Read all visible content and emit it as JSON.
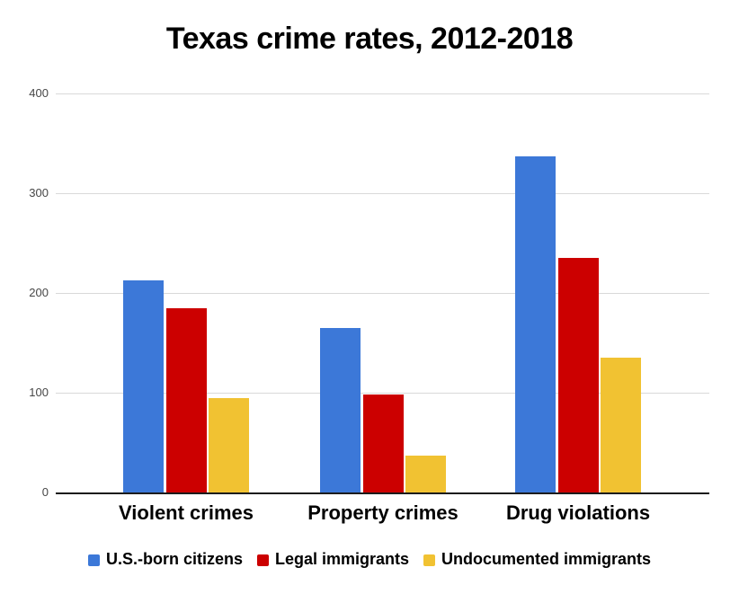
{
  "chart_data": {
    "type": "bar",
    "title": "Texas crime rates, 2012-2018",
    "categories": [
      "Violent crimes",
      "Property crimes",
      "Drug violations"
    ],
    "series": [
      {
        "name": "U.S.-born citizens",
        "color": "#3C78D8",
        "values": [
          213,
          165,
          337
        ]
      },
      {
        "name": "Legal immigrants",
        "color": "#CC0000",
        "values": [
          185,
          98,
          235
        ]
      },
      {
        "name": "Undocumented immigrants",
        "color": "#F1C232",
        "values": [
          95,
          37,
          135
        ]
      }
    ],
    "xlabel": "",
    "ylabel": "",
    "ylim": [
      0,
      400
    ],
    "yticks": [
      0,
      100,
      200,
      300,
      400
    ],
    "grid": true,
    "legend_position": "bottom",
    "colors": {
      "gridline": "#d9d9d9",
      "axis_line": "#1c1c1c",
      "tick_label": "#464646",
      "background": "#ffffff"
    }
  }
}
